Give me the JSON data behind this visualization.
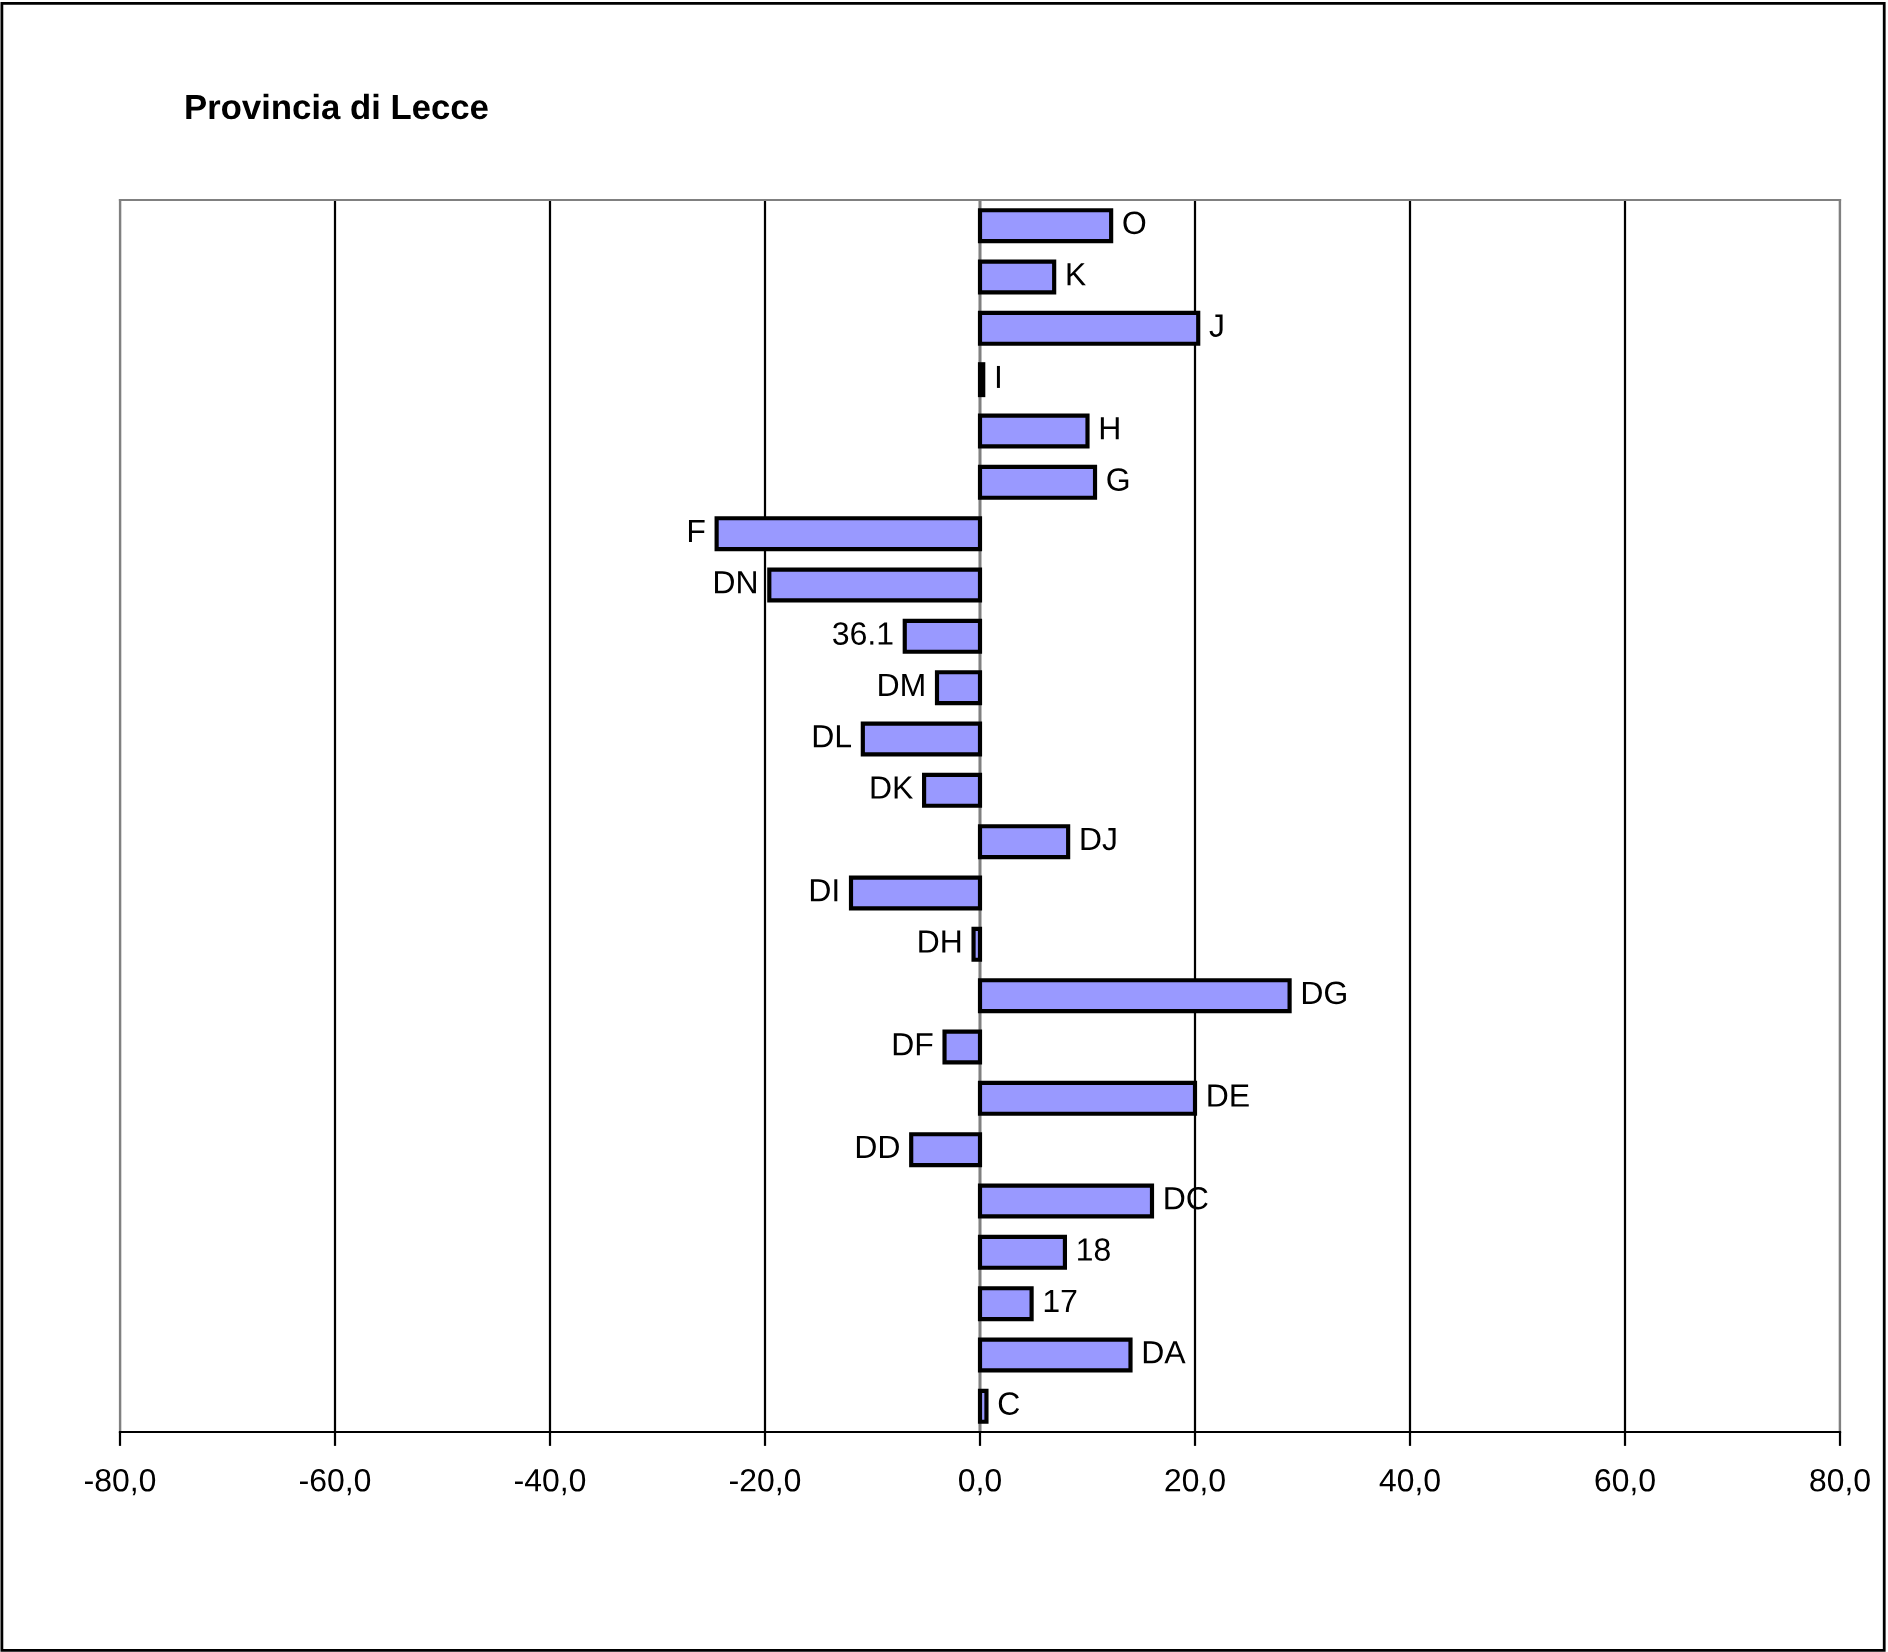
{
  "chart_data": {
    "type": "bar",
    "orientation": "horizontal",
    "title": "Provincia di Lecce",
    "categories": [
      "O",
      "K",
      "J",
      "I",
      "H",
      "G",
      "F",
      "DN",
      "36.1",
      "DM",
      "DL",
      "DK",
      "DJ",
      "DI",
      "DH",
      "DG",
      "DF",
      "DE",
      "DD",
      "DC",
      "18",
      "17",
      "DA",
      "C"
    ],
    "values": [
      12.2,
      6.9,
      20.3,
      0.3,
      10.0,
      10.7,
      -24.5,
      -19.6,
      -7.0,
      -4.0,
      -10.9,
      -5.2,
      8.2,
      -12.0,
      -0.6,
      28.8,
      -3.3,
      20.0,
      -6.4,
      16.0,
      7.9,
      4.8,
      14.0,
      0.6
    ],
    "color": "#9999ff",
    "xlim": [
      -80,
      80
    ],
    "xticks": [
      {
        "value": -80,
        "label": "-80,0"
      },
      {
        "value": -60,
        "label": "-60,0"
      },
      {
        "value": -40,
        "label": "-40,0"
      },
      {
        "value": -20,
        "label": "-20,0"
      },
      {
        "value": 0,
        "label": "0,0"
      },
      {
        "value": 20,
        "label": "20,0"
      },
      {
        "value": 40,
        "label": "40,0"
      },
      {
        "value": 60,
        "label": "60,0"
      },
      {
        "value": 80,
        "label": "80,0"
      }
    ],
    "grid": "x",
    "legend": false
  }
}
